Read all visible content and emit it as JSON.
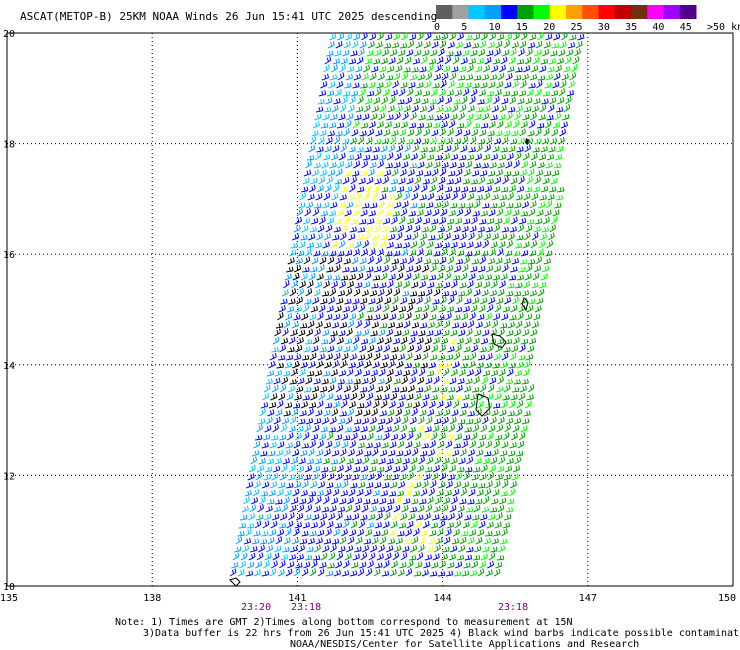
{
  "title": "ASCAT(METOP-B) 25KM NOAA Winds 26 Jun 15:41 UTC 2025 descending",
  "legend": {
    "labels": [
      "0",
      "5",
      "10",
      "15",
      "20",
      "25",
      "30",
      "35",
      "40",
      "45",
      ">50 knots"
    ],
    "colors": [
      "#606060",
      "#a0a0a0",
      "#00c8ff",
      "#00a0ff",
      "#0000ff",
      "#00a000",
      "#00ff00",
      "#ffff00",
      "#ffa000",
      "#ff5000",
      "#ff0000",
      "#c00000",
      "#703010",
      "#ff00ff",
      "#a000ff",
      "#500090"
    ]
  },
  "axes": {
    "lat_labels": [
      "20",
      "18",
      "16",
      "14",
      "12",
      "10"
    ],
    "lon_labels": [
      "135",
      "138",
      "141",
      "144",
      "147",
      "150"
    ],
    "lat_range": [
      10,
      20
    ],
    "lon_range": [
      135,
      150
    ]
  },
  "pass_times": [
    "23:20",
    "23:18",
    "23:18"
  ],
  "notes": [
    "Note: 1) Times are GMT 2)Times along bottom correspond to measurement at 15N",
    "3)Data buffer is 22 hrs from 26 Jun 15:41 UTC 2025 4) Black wind barbs indicate possible contamination",
    "NOAA/NESDIS/Center for Satellite Applications and Research"
  ]
}
